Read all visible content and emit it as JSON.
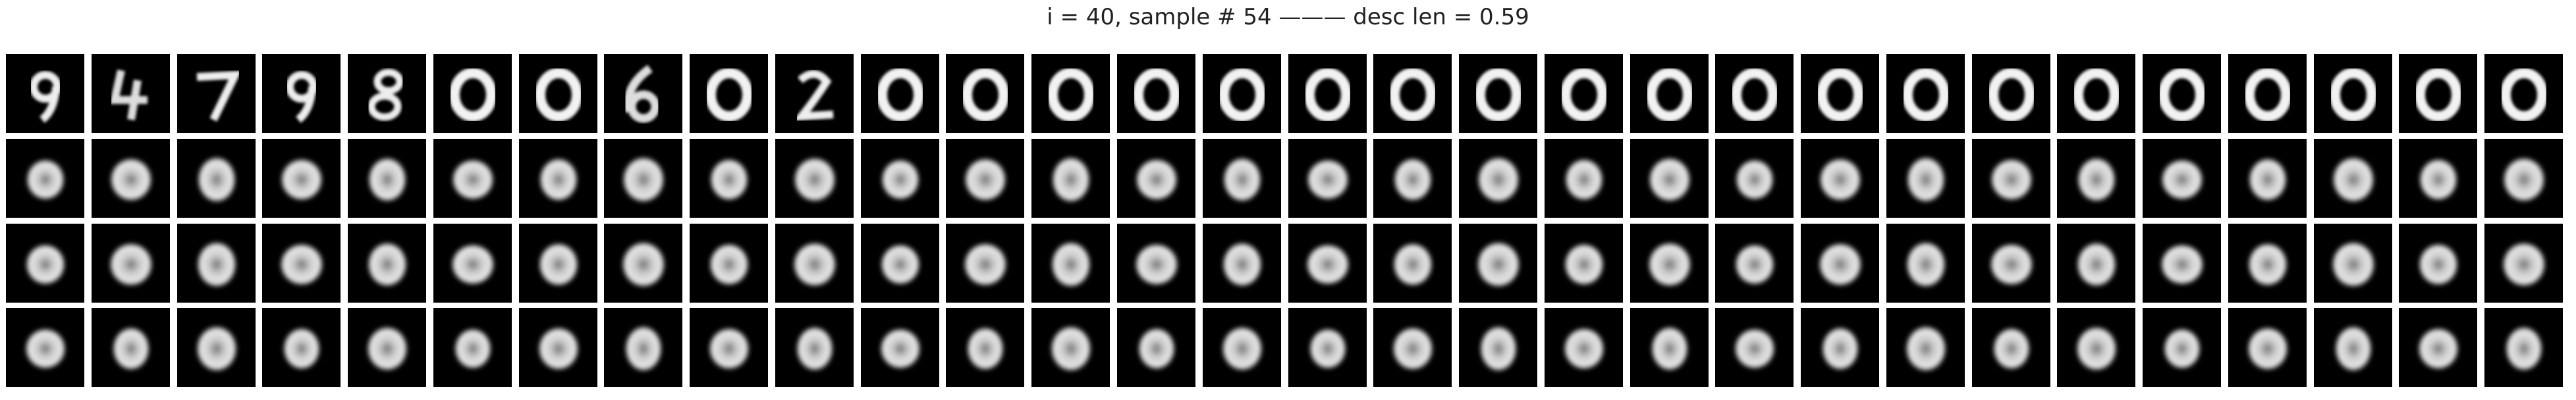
{
  "title": "i = 40, sample # 54 ——— desc len = 0.59",
  "grid": {
    "rows": 4,
    "columns": 30
  },
  "colors": {
    "background": "#ffffff",
    "tile": "#000000",
    "stroke": "#f2f2f2"
  },
  "rows": [
    {
      "tiles": [
        {
          "glyph": "9"
        },
        {
          "glyph": "4"
        },
        {
          "glyph": "7"
        },
        {
          "glyph": "9"
        },
        {
          "glyph": "8"
        },
        {
          "glyph": "0"
        },
        {
          "glyph": "0"
        },
        {
          "glyph": "6"
        },
        {
          "glyph": "0"
        },
        {
          "glyph": "2"
        },
        {
          "glyph": "0"
        },
        {
          "glyph": "0"
        },
        {
          "glyph": "0"
        },
        {
          "glyph": "0"
        },
        {
          "glyph": "0"
        },
        {
          "glyph": "0"
        },
        {
          "glyph": "0"
        },
        {
          "glyph": "0"
        },
        {
          "glyph": "0"
        },
        {
          "glyph": "0"
        },
        {
          "glyph": "0"
        },
        {
          "glyph": "0"
        },
        {
          "glyph": "0"
        },
        {
          "glyph": "0"
        },
        {
          "glyph": "0"
        },
        {
          "glyph": "0"
        },
        {
          "glyph": "0"
        },
        {
          "glyph": "0"
        },
        {
          "glyph": "0"
        },
        {
          "glyph": "0"
        }
      ]
    },
    {
      "tiles": []
    },
    {
      "tiles": []
    },
    {
      "tiles": []
    }
  ]
}
